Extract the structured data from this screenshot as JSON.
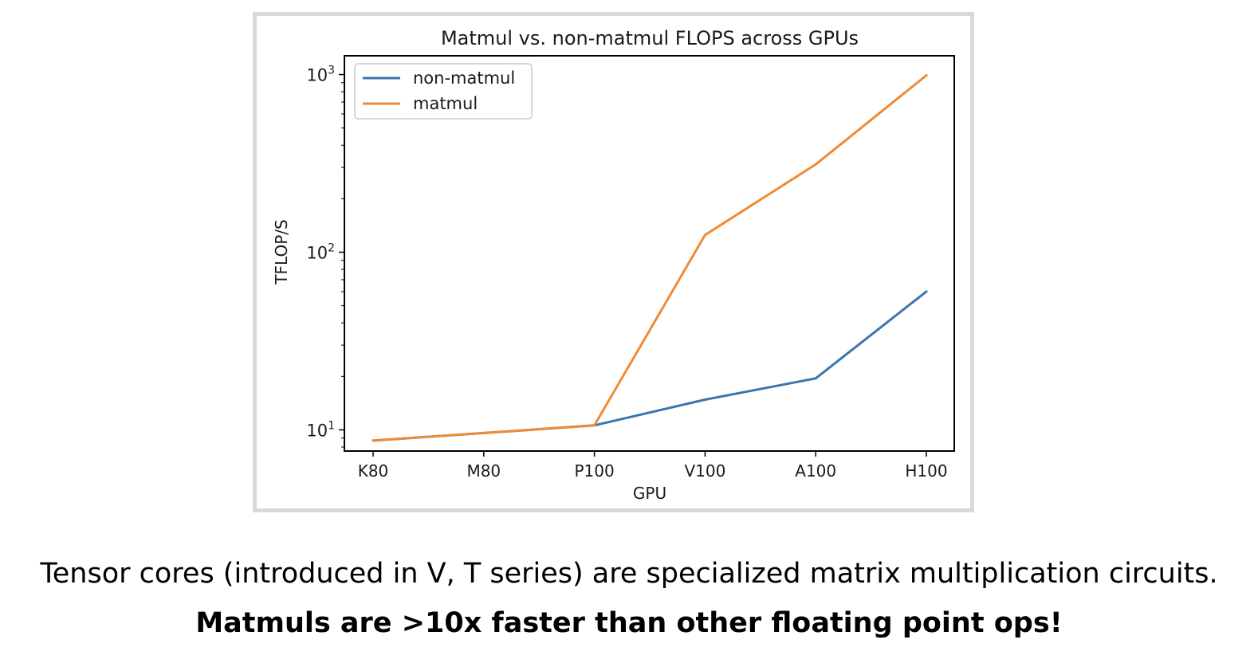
{
  "chart_data": {
    "type": "line",
    "title": "Matmul vs. non-matmul FLOPS across GPUs",
    "xlabel": "GPU",
    "ylabel": "TFLOP/S",
    "categories": [
      "K80",
      "M80",
      "P100",
      "V100",
      "A100",
      "H100"
    ],
    "series": [
      {
        "name": "non-matmul",
        "color": "#3a75b0",
        "values": [
          8.7,
          9.6,
          10.6,
          14.8,
          19.5,
          60
        ]
      },
      {
        "name": "matmul",
        "color": "#f08a35",
        "values": [
          8.7,
          9.6,
          10.6,
          125,
          312,
          989
        ]
      }
    ],
    "y_scale": "log",
    "ylim": [
      7.6,
      1275
    ],
    "y_ticks": [
      {
        "base": "10",
        "exp": "1",
        "value": 10
      },
      {
        "base": "10",
        "exp": "2",
        "value": 100
      },
      {
        "base": "10",
        "exp": "3",
        "value": 1000
      }
    ],
    "grid": false,
    "legend_position": "top-left"
  },
  "caption": {
    "line1": "Tensor cores (introduced in V, T series) are specialized matrix multiplication circuits.",
    "line2": "Matmuls are >10x faster than other floating point ops!"
  }
}
